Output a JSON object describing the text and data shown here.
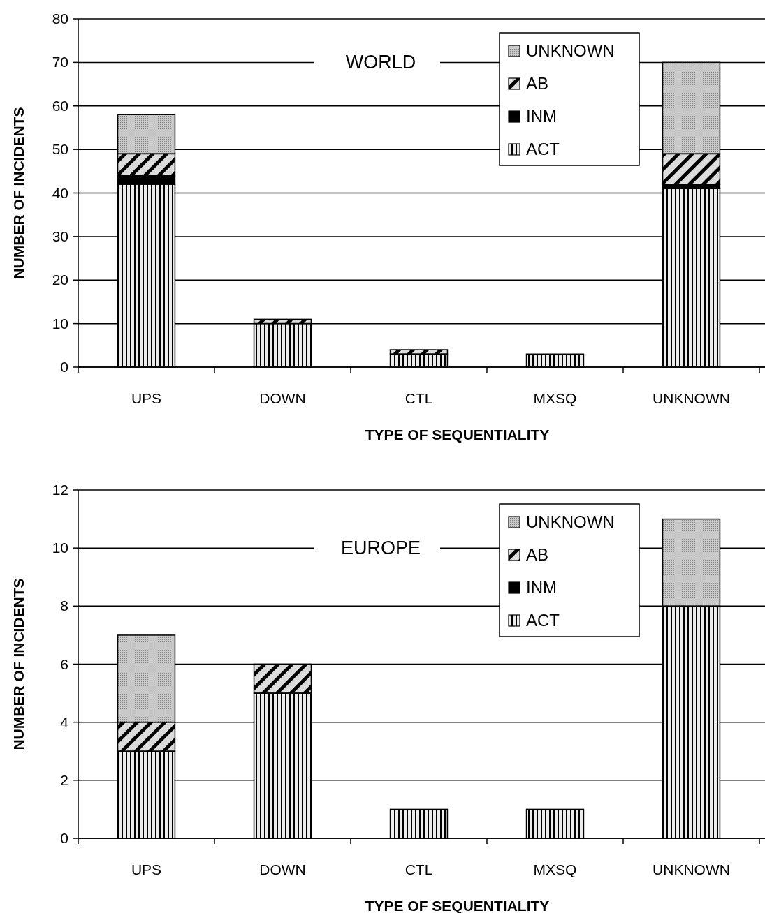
{
  "chart_data": [
    {
      "type": "bar",
      "title": "WORLD",
      "xlabel": "TYPE OF SEQUENTIALITY",
      "ylabel": "NUMBER OF INCIDENTS",
      "stacked": true,
      "grid": "y",
      "legend": "top right",
      "categories": [
        "UPS",
        "DOWN",
        "CTL",
        "MXSQ",
        "UNKNOWN"
      ],
      "ylim": [
        0,
        80
      ],
      "yticks": [
        0,
        10,
        20,
        30,
        40,
        50,
        60,
        70,
        80
      ],
      "series": [
        {
          "name": "ACT",
          "color": "#ececec",
          "values": [
            42,
            10,
            3,
            3,
            41
          ]
        },
        {
          "name": "INM",
          "color": "#000000",
          "values": [
            2,
            0,
            0,
            0,
            1
          ]
        },
        {
          "name": "AB",
          "color": "#dcdcdc",
          "values": [
            5,
            1,
            1,
            0,
            7
          ]
        },
        {
          "name": "UNKNOWN",
          "color": "#c8c8c8",
          "values": [
            9,
            0,
            0,
            0,
            21
          ]
        }
      ]
    },
    {
      "type": "bar",
      "title": "EUROPE",
      "xlabel": "TYPE OF SEQUENTIALITY",
      "ylabel": "NUMBER OF INCIDENTS",
      "stacked": true,
      "grid": "y",
      "legend": "top right",
      "categories": [
        "UPS",
        "DOWN",
        "CTL",
        "MXSQ",
        "UNKNOWN"
      ],
      "ylim": [
        0,
        12
      ],
      "yticks": [
        0,
        2,
        4,
        6,
        8,
        10,
        12
      ],
      "series": [
        {
          "name": "ACT",
          "color": "#ececec",
          "values": [
            3,
            5,
            1,
            1,
            8
          ]
        },
        {
          "name": "INM",
          "color": "#000000",
          "values": [
            0,
            0,
            0,
            0,
            0
          ]
        },
        {
          "name": "AB",
          "color": "#dcdcdc",
          "values": [
            1,
            1,
            0,
            0,
            0
          ]
        },
        {
          "name": "UNKNOWN",
          "color": "#c8c8c8",
          "values": [
            3,
            0,
            0,
            0,
            3
          ]
        }
      ]
    }
  ]
}
